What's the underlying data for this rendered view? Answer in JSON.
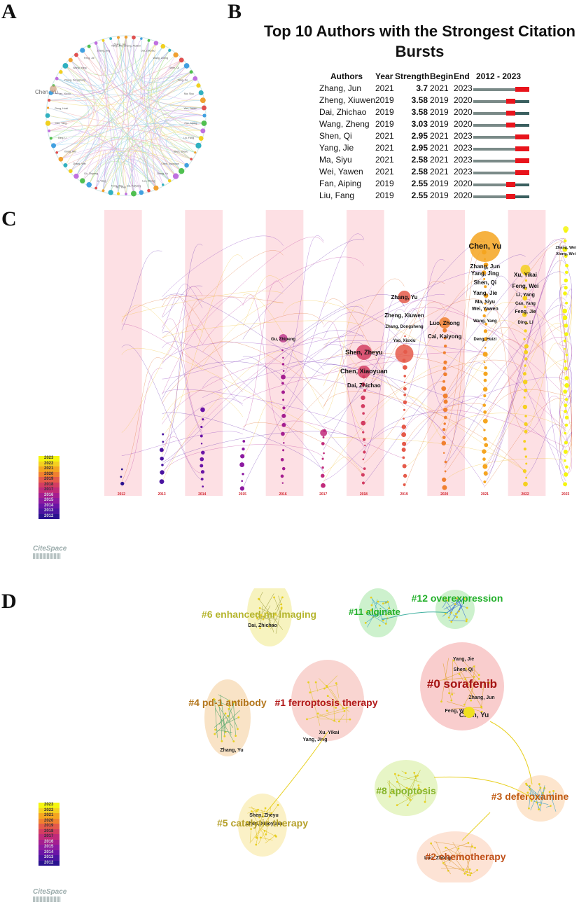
{
  "panels": {
    "a": "A",
    "b": "B",
    "c": "C",
    "d": "D"
  },
  "panel_a": {
    "highlight_label": "Chen, Yu",
    "nodes": [
      "Zhang, Jun",
      "Zheng, Xiuwen",
      "Dai, Zhichao",
      "Wang, Zheng",
      "Shen, Qi",
      "Yang, Jie",
      "Ma, Siyu",
      "Wei, Yawen",
      "Fan, Aiping",
      "Liu, Fang",
      "Shen, Zheyu",
      "Chen, Xiaoyuan",
      "Zhang, Yu",
      "Luo, Zhong",
      "Cai, Kaiyong",
      "Xu, Yikai",
      "Feng, Wei",
      "Li, Yang",
      "Gu, Zhipeng",
      "Zhang, Wei",
      "Xiong, Wei",
      "Ding, Li",
      "Cao, Yang",
      "Deng, Huizi",
      "Yao, Xiuxiu",
      "Zhang, Dongsheng",
      "Wang, Yang",
      "Feng, Jie",
      "Zhang, Jing",
      "Yang, Jing"
    ]
  },
  "burst": {
    "title": "Top 10 Authors with the Strongest Citation Bursts",
    "headers": {
      "author": "Authors",
      "year": "Year",
      "strength": "Strength",
      "begin": "Begin",
      "end": "End",
      "range": "2012 - 2023"
    },
    "range_start": 2012,
    "range_end": 2023,
    "rows": [
      {
        "author": "Zhang, Jun",
        "year": "2021",
        "strength": "3.7",
        "begin": "2021",
        "end": "2023"
      },
      {
        "author": "Zheng, Xiuwen",
        "year": "2019",
        "strength": "3.58",
        "begin": "2019",
        "end": "2020"
      },
      {
        "author": "Dai, Zhichao",
        "year": "2019",
        "strength": "3.58",
        "begin": "2019",
        "end": "2020"
      },
      {
        "author": "Wang, Zheng",
        "year": "2019",
        "strength": "3.03",
        "begin": "2019",
        "end": "2020"
      },
      {
        "author": "Shen, Qi",
        "year": "2021",
        "strength": "2.95",
        "begin": "2021",
        "end": "2023"
      },
      {
        "author": "Yang, Jie",
        "year": "2021",
        "strength": "2.95",
        "begin": "2021",
        "end": "2023"
      },
      {
        "author": "Ma, Siyu",
        "year": "2021",
        "strength": "2.58",
        "begin": "2021",
        "end": "2023"
      },
      {
        "author": "Wei, Yawen",
        "year": "2021",
        "strength": "2.58",
        "begin": "2021",
        "end": "2023"
      },
      {
        "author": "Fan, Aiping",
        "year": "2019",
        "strength": "2.55",
        "begin": "2019",
        "end": "2020"
      },
      {
        "author": "Liu, Fang",
        "year": "2019",
        "strength": "2.55",
        "begin": "2019",
        "end": "2020"
      }
    ]
  },
  "timezone": {
    "years": [
      "2012",
      "2013",
      "2014",
      "2015",
      "2016",
      "2017",
      "2018",
      "2019",
      "2020",
      "2021",
      "2022",
      "2023"
    ],
    "labels": [
      {
        "text": "Chen, Yu",
        "year": "2021"
      },
      {
        "text": "Zhang, Jun",
        "year": "2021"
      },
      {
        "text": "Yang, Jing",
        "year": "2021"
      },
      {
        "text": "Shen, Qi",
        "year": "2021"
      },
      {
        "text": "Yang, Jie",
        "year": "2021"
      },
      {
        "text": "Ma, Siyu",
        "year": "2021"
      },
      {
        "text": "Wei, Yawen",
        "year": "2021"
      },
      {
        "text": "Wang, Yang",
        "year": "2021"
      },
      {
        "text": "Deng, Huizi",
        "year": "2021"
      },
      {
        "text": "Xu, Yikai",
        "year": "2022"
      },
      {
        "text": "Feng, Wei",
        "year": "2022"
      },
      {
        "text": "Li, Yang",
        "year": "2022"
      },
      {
        "text": "Cao, Yang",
        "year": "2022"
      },
      {
        "text": "Feng, Jie",
        "year": "2022"
      },
      {
        "text": "Ding, Li",
        "year": "2022"
      },
      {
        "text": "Zhang, Wei",
        "year": "2023"
      },
      {
        "text": "Xiong, Wei",
        "year": "2023"
      },
      {
        "text": "Zhang, Yu",
        "year": "2019"
      },
      {
        "text": "Zheng, Xiuwen",
        "year": "2019"
      },
      {
        "text": "Zhang, Dongsheng",
        "year": "2019"
      },
      {
        "text": "Yao, Xiuxiu",
        "year": "2019"
      },
      {
        "text": "Luo, Zhong",
        "year": "2020"
      },
      {
        "text": "Cai, Kaiyong",
        "year": "2020"
      },
      {
        "text": "Shen, Zheyu",
        "year": "2018"
      },
      {
        "text": "Chen, Xiaoyuan",
        "year": "2018"
      },
      {
        "text": "Dai, Zhichao",
        "year": "2018"
      },
      {
        "text": "Gu, Zhipeng",
        "year": "2016"
      }
    ]
  },
  "clusters": {
    "items": [
      {
        "id": "c6",
        "label": "#6 enhanced mr imaging",
        "color": "#b5b52e",
        "authors": [
          "Dai, Zhichao"
        ]
      },
      {
        "id": "c11",
        "label": "#11 alginate",
        "color": "#22b02a",
        "authors": []
      },
      {
        "id": "c12",
        "label": "#12 overexpression",
        "color": "#22b02a",
        "authors": []
      },
      {
        "id": "c0",
        "label": "#0 sorafenib",
        "color": "#a51212",
        "authors": [
          "Yang, Jie",
          "Shen, Qi",
          "Zhang, Jun",
          "Feng, Wei",
          "Chen, Yu"
        ]
      },
      {
        "id": "c4",
        "label": "#4 pd-1 antibody",
        "color": "#b3761c",
        "authors": [
          "Zhang, Yu"
        ]
      },
      {
        "id": "c1",
        "label": "#1 ferroptosis therapy",
        "color": "#b11818",
        "authors": [
          "Xu, Yikai",
          "Yang, Jing"
        ]
      },
      {
        "id": "c8",
        "label": "#8 apoptosis",
        "color": "#86b42a",
        "authors": []
      },
      {
        "id": "c3",
        "label": "#3 deferoxamine",
        "color": "#c05a12",
        "authors": []
      },
      {
        "id": "c5",
        "label": "#5 catalytic therapy",
        "color": "#b5a02a",
        "authors": [
          "Shen, Zheyu",
          "Chen, Xiaoyuan"
        ]
      },
      {
        "id": "c2",
        "label": "#2 chemotherapy",
        "color": "#c0501a",
        "authors": [
          "Luo, Zhong"
        ]
      }
    ]
  },
  "legend_years": [
    "2023",
    "2022",
    "2021",
    "2020",
    "2019",
    "2018",
    "2017",
    "2016",
    "2015",
    "2014",
    "2013",
    "2012"
  ],
  "legend_colors": [
    "#f5f510",
    "#f5d020",
    "#f5a520",
    "#f08030",
    "#e55a4a",
    "#d33d62",
    "#c02a7a",
    "#a51e90",
    "#8c1aa0",
    "#6a14a6",
    "#4a14a0",
    "#2a1290"
  ],
  "logo_text": "CiteSpace",
  "colors": {
    "burst": "#e8141c",
    "track": "#7a8a88",
    "tail": "#3a5f5f",
    "stripe": "#fde0e4"
  }
}
